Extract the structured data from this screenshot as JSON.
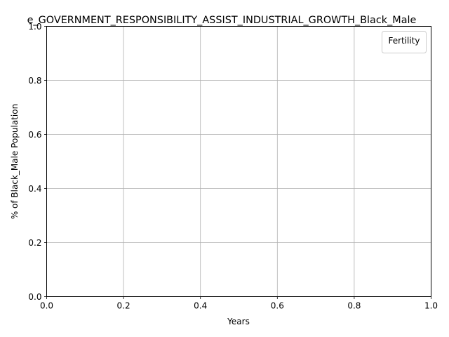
{
  "chart_data": {
    "type": "line",
    "title": "e_GOVERNMENT_RESPONSIBILITY_ASSIST_INDUSTRIAL_GROWTH_Black_Male",
    "xlabel": "Years",
    "ylabel": "% of Black_Male Population",
    "xlim": [
      0.0,
      1.0
    ],
    "ylim": [
      0.0,
      1.0
    ],
    "x_ticks": [
      "0.0",
      "0.2",
      "0.4",
      "0.6",
      "0.8",
      "1.0"
    ],
    "y_ticks": [
      "0.0",
      "0.2",
      "0.4",
      "0.6",
      "0.8",
      "1.0"
    ],
    "grid": true,
    "legend": {
      "title": "Fertility",
      "placement": "top-right",
      "entries": []
    },
    "series": []
  },
  "colors": {
    "grid": "#b0b0b0",
    "axis": "#000000",
    "legend_border": "#cccccc"
  }
}
